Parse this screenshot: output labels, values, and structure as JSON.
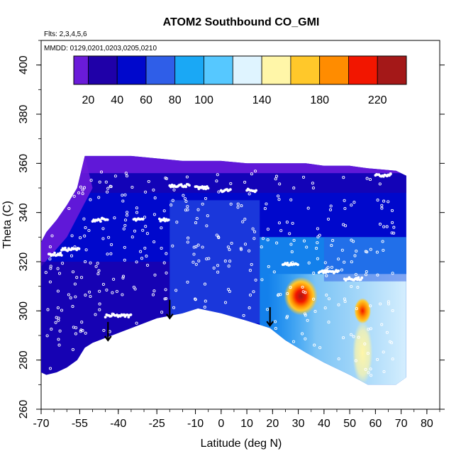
{
  "chart_data": {
    "type": "heatmap",
    "title": "ATOM2 Southbound CO_GMI",
    "flights_label": "Flts: 2,3,4,5,6",
    "dates_label": "MMDD: 0129,0201,0203,0205,0210",
    "xlabel": "Latitude (deg N)",
    "ylabel": "Theta (C)",
    "xlim": [
      -70,
      85
    ],
    "ylim": [
      260,
      410
    ],
    "x_ticks": [
      -70,
      -55,
      -40,
      -25,
      -10,
      0,
      10,
      20,
      30,
      40,
      50,
      60,
      70,
      80
    ],
    "y_ticks": [
      260,
      280,
      300,
      320,
      340,
      360,
      380,
      400
    ],
    "colorbar": {
      "range": [
        10,
        240
      ],
      "tick_values": [
        20,
        40,
        60,
        80,
        100,
        140,
        180,
        220
      ],
      "segments": [
        {
          "lo": 10,
          "hi": 20,
          "color": "#6a1bd9"
        },
        {
          "lo": 20,
          "hi": 40,
          "color": "#1f00a8"
        },
        {
          "lo": 40,
          "hi": 60,
          "color": "#0008cc"
        },
        {
          "lo": 60,
          "hi": 80,
          "color": "#2f5ee8"
        },
        {
          "lo": 80,
          "hi": 100,
          "color": "#1aa8f5"
        },
        {
          "lo": 100,
          "hi": 120,
          "color": "#56c8ff"
        },
        {
          "lo": 120,
          "hi": 140,
          "color": "#dff4ff"
        },
        {
          "lo": 140,
          "hi": 160,
          "color": "#fff6a8"
        },
        {
          "lo": 160,
          "hi": 180,
          "color": "#ffc82a"
        },
        {
          "lo": 180,
          "hi": 200,
          "color": "#ff8c00"
        },
        {
          "lo": 200,
          "hi": 220,
          "color": "#f21600"
        },
        {
          "lo": 220,
          "hi": 240,
          "color": "#a41818"
        }
      ]
    },
    "domain_bounds": [
      {
        "lat": -70,
        "lower": 275,
        "upper": 328
      },
      {
        "lat": -68,
        "lower": 274,
        "upper": 332
      },
      {
        "lat": -64,
        "lower": 275,
        "upper": 337
      },
      {
        "lat": -60,
        "lower": 277,
        "upper": 343
      },
      {
        "lat": -56,
        "lower": 280,
        "upper": 350
      },
      {
        "lat": -53,
        "lower": 285,
        "upper": 363
      },
      {
        "lat": -50,
        "lower": 287,
        "upper": 363
      },
      {
        "lat": -45,
        "lower": 289,
        "upper": 363
      },
      {
        "lat": -35,
        "lower": 293,
        "upper": 363
      },
      {
        "lat": -25,
        "lower": 297,
        "upper": 362
      },
      {
        "lat": -15,
        "lower": 299,
        "upper": 361
      },
      {
        "lat": -9,
        "lower": 301,
        "upper": 361
      },
      {
        "lat": 0,
        "lower": 299,
        "upper": 361
      },
      {
        "lat": 10,
        "lower": 296,
        "upper": 360
      },
      {
        "lat": 19,
        "lower": 293,
        "upper": 360
      },
      {
        "lat": 25,
        "lower": 288,
        "upper": 360
      },
      {
        "lat": 33,
        "lower": 283,
        "upper": 360
      },
      {
        "lat": 40,
        "lower": 279,
        "upper": 359
      },
      {
        "lat": 50,
        "lower": 274,
        "upper": 359
      },
      {
        "lat": 57,
        "lower": 270,
        "upper": 358
      },
      {
        "lat": 68,
        "lower": 270,
        "upper": 357
      },
      {
        "lat": 72,
        "lower": 273,
        "upper": 355
      }
    ],
    "field_description": "CO mixing ratio curtain vs latitude and potential temperature",
    "hotspots": [
      {
        "lat": 31,
        "theta": 306,
        "value": 225,
        "radius_lat": 5,
        "radius_theta": 6
      },
      {
        "lat": 55,
        "theta": 300,
        "value": 200,
        "radius_lat": 2.5,
        "radius_theta": 4
      },
      {
        "lat": 55,
        "theta": 283,
        "value": 140,
        "radius_lat": 3,
        "radius_theta": 10
      }
    ],
    "arrows": [
      {
        "lat": -44,
        "theta": 292
      },
      {
        "lat": -20,
        "theta": 301
      },
      {
        "lat": 19,
        "theta": 298
      }
    ]
  }
}
